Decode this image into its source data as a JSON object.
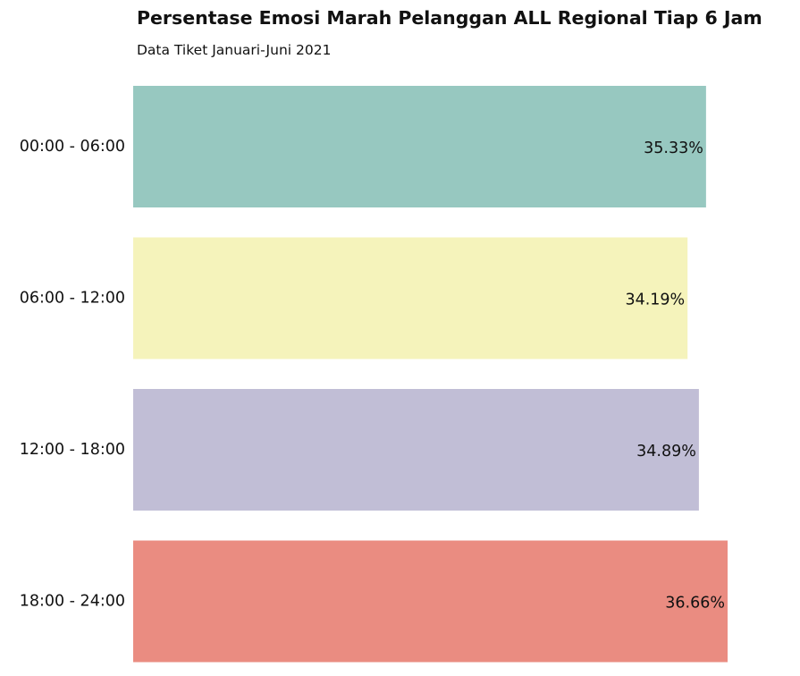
{
  "chart_data": {
    "type": "bar",
    "orientation": "horizontal",
    "title": "Persentase Emosi Marah Pelanggan ALL Regional Tiap 6 Jam",
    "subtitle": "Data Tiket Januari-Juni 2021",
    "xlabel": "",
    "ylabel": "",
    "categories": [
      "00:00 - 06:00",
      "06:00 - 12:00",
      "12:00 - 18:00",
      "18:00 - 24:00"
    ],
    "values": [
      35.33,
      34.19,
      34.89,
      36.66
    ],
    "data_labels": [
      "35.33%",
      "34.19%",
      "34.89%",
      "36.66%"
    ],
    "colors": [
      "#97c8c0",
      "#f5f3bb",
      "#c1bed6",
      "#ea8c81"
    ],
    "xlim": [
      0,
      36.66
    ],
    "grid": false,
    "axes_visible": false,
    "legend": "none"
  }
}
